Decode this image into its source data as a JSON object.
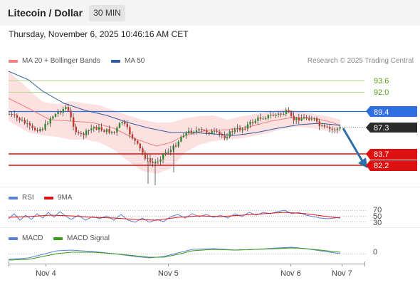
{
  "header": {
    "title": "Litecoin / Dollar",
    "timeframe": "30 MIN"
  },
  "datetime": "Thursday, November 6, 2025 10:46:16 AM CET",
  "legend_main": [
    {
      "label": "MA 20 + Bollinger Bands",
      "color": "#f08080"
    },
    {
      "label": "MA 50",
      "color": "#2f5c9e"
    }
  ],
  "credit": "Research © 2025 Trading Central",
  "levels": [
    {
      "value": "93.6",
      "kind": "resistance",
      "color": "#b5d98c",
      "text_color": "#5a9a1a"
    },
    {
      "value": "92.0",
      "kind": "resistance",
      "color": "#b5d98c",
      "text_color": "#5a9a1a"
    },
    {
      "value": "89.4",
      "kind": "pivot",
      "color": "#2f6fe0",
      "text_color": "#ffffff"
    },
    {
      "value": "87.3",
      "kind": "last-price",
      "color": "#2b2b2b",
      "text_color": "#ffffff"
    },
    {
      "value": "83.7",
      "kind": "support",
      "color": "#dd1111",
      "text_color": "#ffffff"
    },
    {
      "value": "82.2",
      "kind": "support",
      "color": "#dd1111",
      "text_color": "#ffffff"
    }
  ],
  "rsi": {
    "legend": [
      {
        "label": "RSI",
        "color": "#5b7fd6"
      },
      {
        "label": "9MA",
        "color": "#dd1111"
      }
    ],
    "levels": [
      "70",
      "50",
      "30"
    ]
  },
  "macd": {
    "legend": [
      {
        "label": "MACD",
        "color": "#5b7fd6"
      },
      {
        "label": "MACD Signal",
        "color": "#3a9a1a"
      }
    ],
    "zero": "0"
  },
  "x_axis": [
    "Nov 4",
    "Nov 5",
    "Nov 6",
    "Nov 7"
  ]
}
